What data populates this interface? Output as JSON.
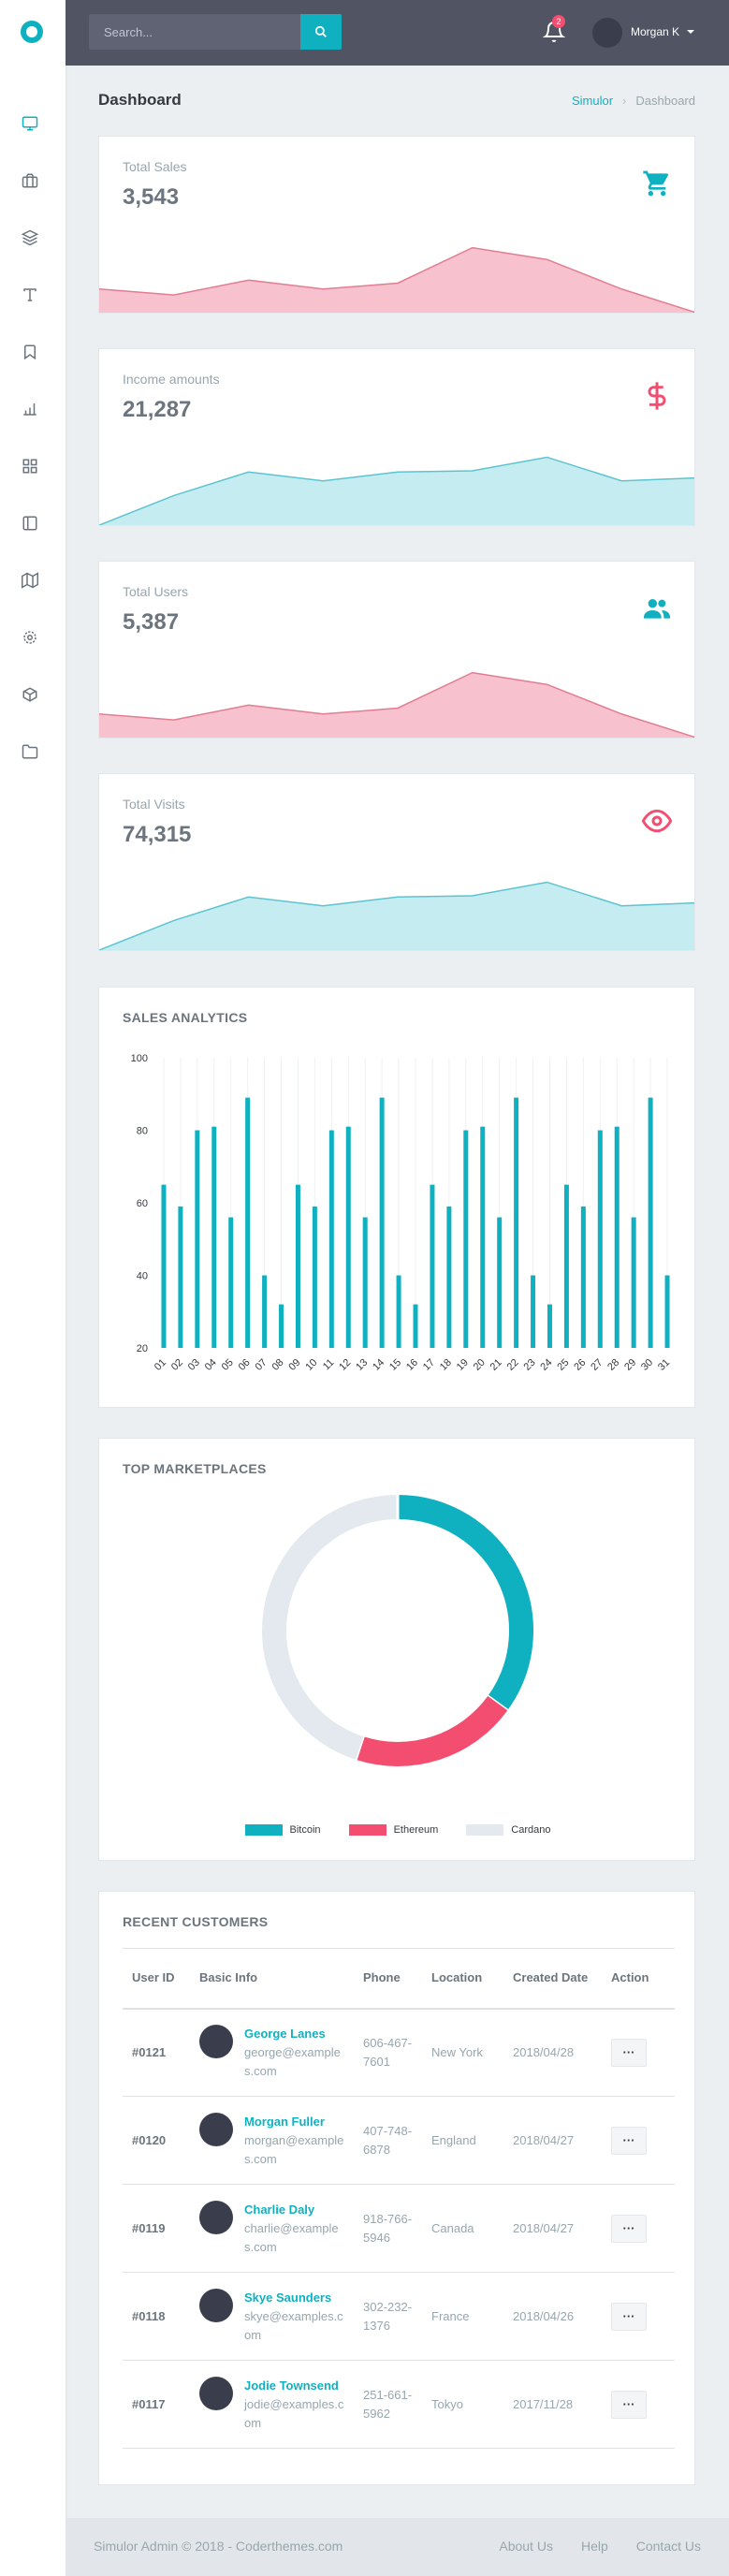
{
  "colors": {
    "accent": "#0fb1c1",
    "danger": "#f34d6f",
    "topbar": "#505463",
    "pink_fill": "#f7c1cd",
    "teal_fill": "#c5ecf0"
  },
  "header": {
    "search_placeholder": "Search...",
    "notification_count": "2",
    "user_name": "Morgan K"
  },
  "sidebar": {
    "items": [
      {
        "icon": "monitor-icon"
      },
      {
        "icon": "briefcase-icon"
      },
      {
        "icon": "layers-icon"
      },
      {
        "icon": "type-icon"
      },
      {
        "icon": "bookmark-icon"
      },
      {
        "icon": "bar-chart-icon"
      },
      {
        "icon": "grid-icon"
      },
      {
        "icon": "sidebar-layout-icon"
      },
      {
        "icon": "map-icon"
      },
      {
        "icon": "settings-icon"
      },
      {
        "icon": "box-icon"
      },
      {
        "icon": "folder-icon"
      }
    ]
  },
  "page": {
    "title": "Dashboard",
    "breadcrumb": [
      "Simulor",
      "Dashboard"
    ]
  },
  "stats": [
    {
      "label": "Total Sales",
      "value": "3,543",
      "icon": "cart-icon",
      "trend": [
        40,
        30,
        55,
        40,
        50,
        110,
        90,
        40,
        0
      ]
    },
    {
      "label": "Income amounts",
      "value": "21,287",
      "icon": "dollar-icon",
      "trend": [
        0,
        50,
        90,
        75,
        90,
        92,
        115,
        75,
        80
      ]
    },
    {
      "label": "Total Users",
      "value": "5,387",
      "icon": "users-icon",
      "trend": [
        40,
        30,
        55,
        40,
        50,
        110,
        90,
        40,
        0
      ]
    },
    {
      "label": "Total Visits",
      "value": "74,315",
      "icon": "eye-icon",
      "trend": [
        0,
        50,
        90,
        75,
        90,
        92,
        115,
        75,
        80
      ]
    }
  ],
  "sales_analytics": {
    "title": "SALES ANALYTICS",
    "chart_data": {
      "type": "bar",
      "categories": [
        "01",
        "02",
        "03",
        "04",
        "05",
        "06",
        "07",
        "08",
        "09",
        "10",
        "11",
        "12",
        "13",
        "14",
        "15",
        "16",
        "17",
        "18",
        "19",
        "20",
        "21",
        "22",
        "23",
        "24",
        "25",
        "26",
        "27",
        "28",
        "29",
        "30",
        "31"
      ],
      "values": [
        65,
        59,
        80,
        81,
        56,
        89,
        40,
        32,
        65,
        59,
        80,
        81,
        56,
        89,
        40,
        32,
        65,
        59,
        80,
        81,
        56,
        89,
        40,
        32,
        65,
        59,
        80,
        81,
        56,
        89,
        40
      ],
      "ylim": [
        20,
        100
      ],
      "yticks": [
        20,
        40,
        60,
        80,
        100
      ],
      "color": "#0fb1c1",
      "grid": true
    }
  },
  "marketplaces": {
    "title": "TOP MARKETPLACES",
    "chart_data": {
      "type": "pie",
      "labels": [
        "Bitcoin",
        "Ethereum",
        "Cardano"
      ],
      "values": [
        35,
        20,
        45
      ],
      "colors": [
        "#0fb1c1",
        "#f34d6f",
        "#e3e9ef"
      ],
      "legend_position": "bottom"
    }
  },
  "customers": {
    "title": "RECENT CUSTOMERS",
    "columns": [
      "User ID",
      "Basic Info",
      "Phone",
      "Location",
      "Created Date",
      "Action"
    ],
    "action_label": "···",
    "rows": [
      {
        "id": "#0121",
        "name": "George Lanes",
        "email": "george@examples.com",
        "phone": "606-467-7601",
        "location": "New York",
        "date": "2018/04/28"
      },
      {
        "id": "#0120",
        "name": "Morgan Fuller",
        "email": "morgan@examples.com",
        "phone": "407-748-6878",
        "location": "England",
        "date": "2018/04/27"
      },
      {
        "id": "#0119",
        "name": "Charlie Daly",
        "email": "charlie@examples.com",
        "phone": "918-766-5946",
        "location": "Canada",
        "date": "2018/04/27"
      },
      {
        "id": "#0118",
        "name": "Skye Saunders",
        "email": "skye@examples.com",
        "phone": "302-232-1376",
        "location": "France",
        "date": "2018/04/26"
      },
      {
        "id": "#0117",
        "name": "Jodie Townsend",
        "email": "jodie@examples.com",
        "phone": "251-661-5962",
        "location": "Tokyo",
        "date": "2017/11/28"
      }
    ]
  },
  "footer": {
    "copyright": "Simulor Admin © 2018 - Coderthemes.com",
    "links": [
      "About Us",
      "Help",
      "Contact Us"
    ]
  }
}
